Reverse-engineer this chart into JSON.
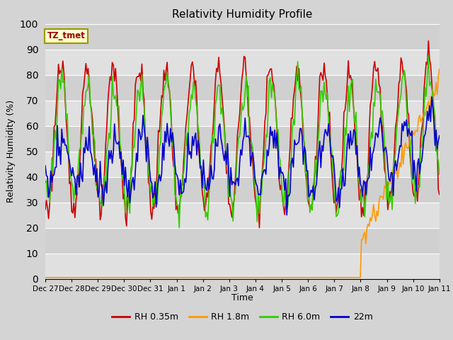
{
  "title": "Relativity Humidity Profile",
  "xlabel": "Time",
  "ylabel": "Relativity Humidity (%)",
  "ylim": [
    0,
    100
  ],
  "annotation": "TZ_tmet",
  "xtick_labels": [
    "Dec 27",
    "Dec 28",
    "Dec 29",
    "Dec 30",
    "Dec 31",
    "Jan 1",
    "Jan 2",
    "Jan 3",
    "Jan 4",
    "Jan 5",
    "Jan 6",
    "Jan 7",
    "Jan 8",
    "Jan 9",
    "Jan 10",
    "Jan 11"
  ],
  "colors": {
    "red": "#cc0000",
    "orange": "#ff9900",
    "green": "#33cc00",
    "blue": "#0000cc"
  },
  "legend_labels": [
    "RH 0.35m",
    "RH 1.8m",
    "RH 6.0m",
    "22m"
  ],
  "fig_facecolor": "#d4d4d4",
  "plot_facecolor": "#e0e0e0",
  "band_dark": "#d0d0d0",
  "band_light": "#e0e0e0",
  "grid_color": "#c8c8c8"
}
